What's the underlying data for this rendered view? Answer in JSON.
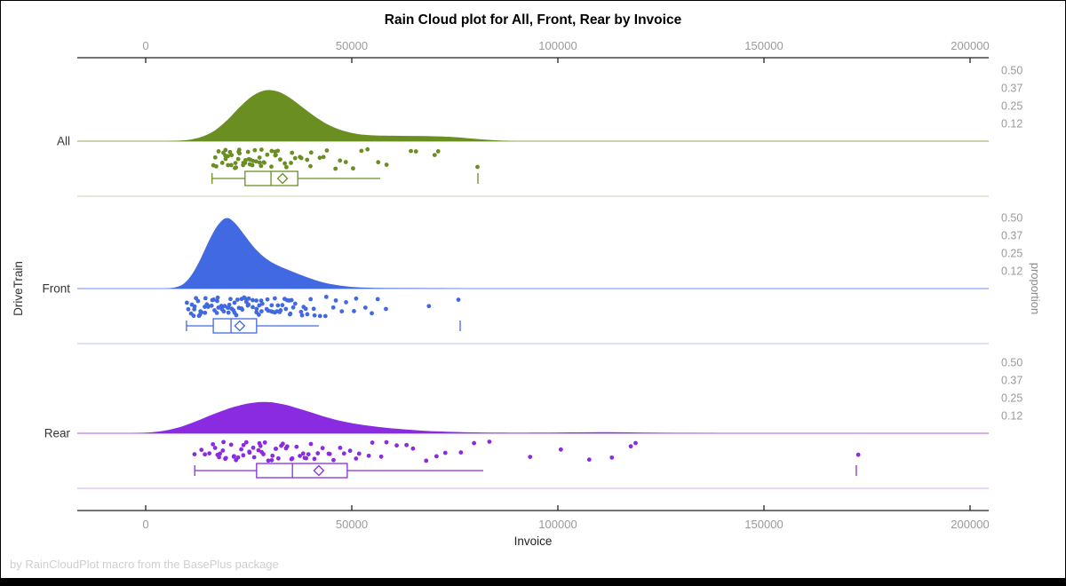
{
  "footnote": "by RainCloudPlot macro from the BasePlus package",
  "chart_data": {
    "type": "raincloud",
    "title": "Rain Cloud plot for All, Front, Rear by Invoice",
    "xlabel": "Invoice",
    "ylabel_left": "DriveTrain",
    "ylabel_right": "proportion",
    "x_axis": {
      "range": [
        -16500,
        204500
      ],
      "ticks": [
        {
          "v": 0,
          "label": "0"
        },
        {
          "v": 50000,
          "label": "50000"
        },
        {
          "v": 100000,
          "label": "100000"
        },
        {
          "v": 150000,
          "label": "150000"
        },
        {
          "v": 200000,
          "label": "200000"
        }
      ]
    },
    "proportion_ticks": [
      {
        "v": 0.5,
        "label": "0.50"
      },
      {
        "v": 0.375,
        "label": "0.37"
      },
      {
        "v": 0.25,
        "label": "0.25"
      },
      {
        "v": 0.125,
        "label": "0.12"
      }
    ],
    "groups": [
      {
        "name": "All",
        "color": "#6B8E23",
        "density": [
          [
            5000,
            0
          ],
          [
            8000,
            0.003
          ],
          [
            11000,
            0.012
          ],
          [
            14000,
            0.035
          ],
          [
            17000,
            0.08
          ],
          [
            20000,
            0.155
          ],
          [
            23000,
            0.245
          ],
          [
            26000,
            0.32
          ],
          [
            29000,
            0.358
          ],
          [
            32000,
            0.35
          ],
          [
            35000,
            0.305
          ],
          [
            38000,
            0.24
          ],
          [
            41000,
            0.175
          ],
          [
            44000,
            0.12
          ],
          [
            47000,
            0.082
          ],
          [
            50000,
            0.058
          ],
          [
            53000,
            0.045
          ],
          [
            56000,
            0.04
          ],
          [
            60000,
            0.038
          ],
          [
            64000,
            0.037
          ],
          [
            68000,
            0.036
          ],
          [
            72000,
            0.033
          ],
          [
            76000,
            0.026
          ],
          [
            80000,
            0.016
          ],
          [
            84000,
            0.008
          ],
          [
            88000,
            0.002
          ],
          [
            90000,
            0
          ]
        ],
        "box": {
          "low": 16100,
          "q1": 24100,
          "median": 30400,
          "mean": 33200,
          "q3": 36900,
          "high": 56900,
          "outliers": [
            80600
          ]
        },
        "rain": [
          16100,
          16900,
          17400,
          17900,
          18300,
          18700,
          19000,
          19300,
          19600,
          19900,
          20200,
          20500,
          20800,
          21100,
          21400,
          21700,
          22000,
          22300,
          22600,
          22900,
          23200,
          23500,
          23800,
          24100,
          24400,
          24700,
          25000,
          25300,
          25600,
          25900,
          26200,
          26500,
          26900,
          27300,
          27700,
          28100,
          28500,
          28900,
          29300,
          29700,
          30100,
          30500,
          31000,
          31500,
          32000,
          32500,
          33000,
          33600,
          34200,
          34800,
          35500,
          36200,
          37000,
          37800,
          38700,
          39600,
          40600,
          41700,
          42900,
          44200,
          45600,
          47100,
          48700,
          50400,
          52200,
          54100,
          56100,
          58200,
          63900,
          65200,
          70400,
          71200,
          80600
        ]
      },
      {
        "name": "Front",
        "color": "#4169E1",
        "density": [
          [
            4000,
            0
          ],
          [
            6500,
            0.005
          ],
          [
            9000,
            0.03
          ],
          [
            11000,
            0.09
          ],
          [
            13000,
            0.19
          ],
          [
            15000,
            0.315
          ],
          [
            17000,
            0.425
          ],
          [
            18500,
            0.478
          ],
          [
            19500,
            0.495
          ],
          [
            20500,
            0.49
          ],
          [
            22000,
            0.45
          ],
          [
            24000,
            0.375
          ],
          [
            26000,
            0.3
          ],
          [
            28000,
            0.24
          ],
          [
            30000,
            0.195
          ],
          [
            32000,
            0.163
          ],
          [
            34000,
            0.138
          ],
          [
            36000,
            0.115
          ],
          [
            38000,
            0.092
          ],
          [
            40000,
            0.071
          ],
          [
            42000,
            0.052
          ],
          [
            44000,
            0.037
          ],
          [
            46000,
            0.026
          ],
          [
            48000,
            0.018
          ],
          [
            50000,
            0.012
          ],
          [
            53000,
            0.007
          ],
          [
            56000,
            0.004
          ],
          [
            60000,
            0.003
          ],
          [
            64000,
            0.0025
          ],
          [
            68000,
            0.002
          ],
          [
            72000,
            0.001
          ],
          [
            76000,
            0
          ]
        ],
        "box": {
          "low": 9900,
          "q1": 16400,
          "median": 20700,
          "mean": 22800,
          "q3": 26900,
          "high": 42000,
          "outliers": [
            76300
          ]
        },
        "rain": [
          9900,
          10400,
          10800,
          11150,
          11450,
          11750,
          12050,
          12350,
          12650,
          12950,
          13250,
          13550,
          13850,
          14150,
          14450,
          14750,
          15050,
          15350,
          15650,
          15950,
          16250,
          16550,
          16850,
          17150,
          17450,
          17750,
          18050,
          18350,
          18650,
          18950,
          19250,
          19550,
          19850,
          20150,
          20450,
          20750,
          21050,
          21350,
          21650,
          21950,
          22250,
          22550,
          22850,
          23150,
          23450,
          23750,
          24050,
          24350,
          24650,
          24950,
          25250,
          25550,
          25850,
          26150,
          26450,
          26750,
          27050,
          27350,
          27650,
          27950,
          28300,
          28650,
          29000,
          29350,
          29700,
          30050,
          30400,
          30750,
          31100,
          31450,
          31800,
          32150,
          32500,
          32850,
          33200,
          33550,
          33900,
          34300,
          34700,
          35100,
          35500,
          35900,
          36300,
          36800,
          37300,
          37800,
          38300,
          38900,
          39500,
          40100,
          40800,
          41500,
          42300,
          43100,
          44000,
          45000,
          46100,
          47300,
          48600,
          50000,
          51500,
          53100,
          54800,
          56600,
          58500,
          69000,
          76100
        ]
      },
      {
        "name": "Rear",
        "color": "#8A2BE2",
        "density": [
          [
            -3000,
            0
          ],
          [
            0,
            0.004
          ],
          [
            3000,
            0.012
          ],
          [
            6000,
            0.027
          ],
          [
            9000,
            0.05
          ],
          [
            12000,
            0.082
          ],
          [
            15000,
            0.118
          ],
          [
            18000,
            0.152
          ],
          [
            21000,
            0.182
          ],
          [
            24000,
            0.205
          ],
          [
            27000,
            0.218
          ],
          [
            29000,
            0.22
          ],
          [
            31000,
            0.216
          ],
          [
            34000,
            0.2
          ],
          [
            37000,
            0.175
          ],
          [
            40000,
            0.148
          ],
          [
            43000,
            0.12
          ],
          [
            46000,
            0.096
          ],
          [
            49000,
            0.077
          ],
          [
            52000,
            0.062
          ],
          [
            55000,
            0.05
          ],
          [
            58000,
            0.04
          ],
          [
            61000,
            0.032
          ],
          [
            64000,
            0.025
          ],
          [
            67000,
            0.019
          ],
          [
            70000,
            0.014
          ],
          [
            74000,
            0.01
          ],
          [
            78000,
            0.007
          ],
          [
            82000,
            0.005
          ],
          [
            86000,
            0.0035
          ],
          [
            90000,
            0.003
          ],
          [
            95000,
            0.0035
          ],
          [
            100000,
            0.005
          ],
          [
            105000,
            0.0065
          ],
          [
            110000,
            0.0075
          ],
          [
            115000,
            0.007
          ],
          [
            120000,
            0.005
          ],
          [
            125000,
            0.003
          ],
          [
            130000,
            0.0015
          ],
          [
            135000,
            0.0008
          ],
          [
            140000,
            0
          ]
        ],
        "box": {
          "low": 11900,
          "q1": 26900,
          "median": 35600,
          "mean": 42000,
          "q3": 48900,
          "high": 81900,
          "outliers": [
            172400
          ]
        },
        "rain": [
          11900,
          13600,
          14600,
          15300,
          15900,
          16400,
          16900,
          17400,
          17900,
          18400,
          18900,
          19400,
          19900,
          20400,
          20900,
          21400,
          21900,
          22400,
          22900,
          23400,
          23900,
          24400,
          24900,
          25400,
          25900,
          26400,
          26900,
          27400,
          27900,
          28400,
          28900,
          29400,
          29900,
          30400,
          30900,
          31400,
          31900,
          32400,
          32900,
          33400,
          34000,
          34600,
          35200,
          35800,
          36400,
          37000,
          37700,
          38400,
          39100,
          39800,
          40600,
          41400,
          42200,
          43100,
          44000,
          45000,
          46000,
          47100,
          48200,
          49400,
          50700,
          52100,
          53600,
          55200,
          56900,
          58700,
          60700,
          62800,
          65100,
          67600,
          70300,
          73200,
          76400,
          79900,
          83700,
          93500,
          100200,
          107100,
          112900,
          117200,
          119200,
          172400
        ]
      }
    ]
  }
}
